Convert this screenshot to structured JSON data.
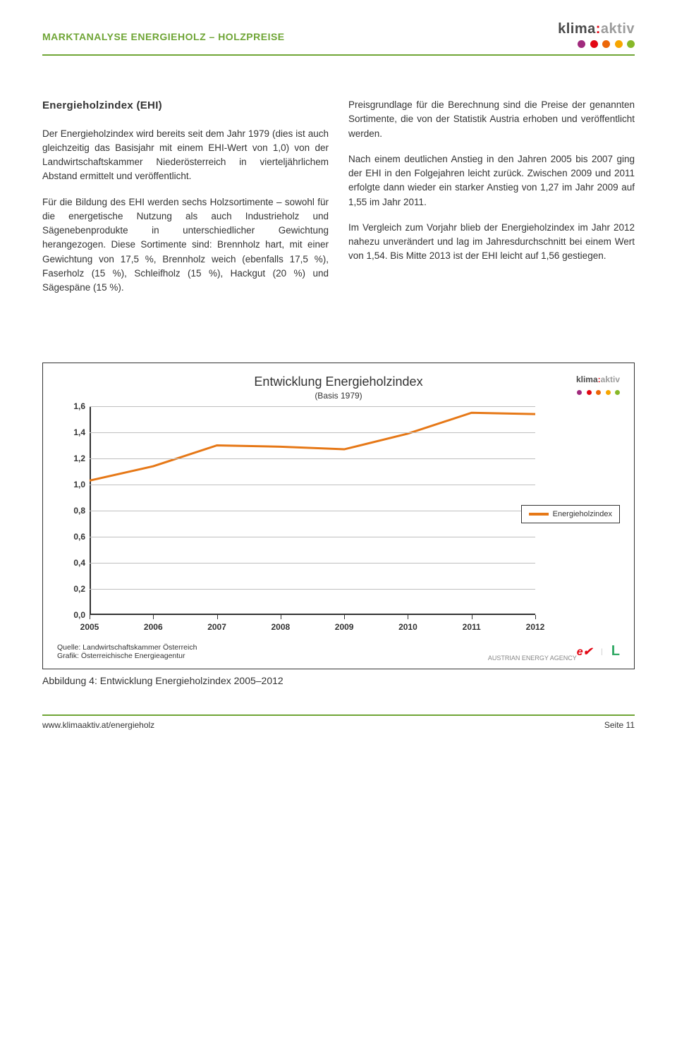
{
  "header": {
    "title": "MARKTANALYSE ENERGIEHOLZ – HOLZPREISE",
    "logo_klima": "klima",
    "logo_colon": ":",
    "logo_aktiv": "aktiv",
    "dot_colors": [
      "#a02a7d",
      "#e30613",
      "#ec6608",
      "#f7a600",
      "#87b828"
    ]
  },
  "article": {
    "section_title": "Energieholzindex (EHI)",
    "left_paras": [
      "Der Energieholzindex wird bereits seit dem Jahr 1979 (dies ist auch gleichzeitig das Basisjahr mit einem EHI-Wert von 1,0) von der Landwirtschaftskammer Niederösterreich in vierteljährlichem Abstand ermittelt und veröffentlicht.",
      "Für die Bildung des EHI werden sechs Holzsortimente – sowohl für die energetische Nutzung als auch Industrieholz und Sägenebenprodukte in unterschiedlicher Gewichtung herangezogen. Diese Sortimente sind: Brennholz hart, mit einer Gewichtung von 17,5 %, Brennholz weich (ebenfalls 17,5 %), Faserholz (15 %), Schleifholz (15 %), Hackgut (20 %) und Sägespäne (15 %)."
    ],
    "right_paras": [
      "Preisgrundlage für die Berechnung sind die Preise der genannten Sortimente, die von der Statistik Austria erhoben und veröffentlicht werden.",
      "Nach einem deutlichen Anstieg in den Jahren 2005 bis 2007 ging der EHI in den Folgejahren leicht zurück. Zwischen 2009 und 2011 erfolgte dann wieder ein starker Anstieg von 1,27 im Jahr 2009 auf 1,55 im Jahr 2011.",
      "Im Vergleich zum Vorjahr blieb der Energieholzindex im Jahr 2012 nahezu unverändert und lag im Jahresdurchschnitt bei einem Wert von 1,54. Bis Mitte 2013 ist der EHI leicht auf 1,56 gestiegen."
    ]
  },
  "chart": {
    "type": "line",
    "title": "Entwicklung Energieholzindex",
    "subtitle": "(Basis 1979)",
    "x_categories": [
      "2005",
      "2006",
      "2007",
      "2008",
      "2009",
      "2010",
      "2011",
      "2012"
    ],
    "y_values": [
      1.03,
      1.14,
      1.3,
      1.29,
      1.27,
      1.39,
      1.55,
      1.54
    ],
    "ylim": [
      0.0,
      1.6
    ],
    "ytick_step": 0.2,
    "ytick_labels": [
      "0,0",
      "0,2",
      "0,4",
      "0,6",
      "0,8",
      "1,0",
      "1,2",
      "1,4",
      "1,6"
    ],
    "line_color": "#e67817",
    "line_width": 3,
    "grid_color": "#bfbfbf",
    "axis_color": "#333333",
    "background_color": "#ffffff",
    "legend_label": "Energieholzindex",
    "source": "Quelle: Landwirtschaftskammer Österreich",
    "graphic": "Grafik: Österreichische Energieagentur",
    "bottom_logo_1": "e✔",
    "bottom_logo_2": "AUSTRIAN ENERGY AGENCY",
    "caption": "Abbildung 4: Entwicklung Energieholzindex 2005–2012"
  },
  "footer": {
    "url": "www.klimaaktiv.at/energieholz",
    "page": "Seite 11"
  }
}
